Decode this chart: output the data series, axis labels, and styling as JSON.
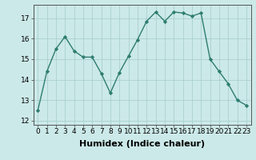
{
  "x": [
    0,
    1,
    2,
    3,
    4,
    5,
    6,
    7,
    8,
    9,
    10,
    11,
    12,
    13,
    14,
    15,
    16,
    17,
    18,
    19,
    20,
    21,
    22,
    23
  ],
  "y": [
    12.5,
    14.4,
    15.5,
    16.1,
    15.4,
    15.1,
    15.1,
    14.3,
    13.35,
    14.35,
    15.15,
    15.95,
    16.85,
    17.3,
    16.85,
    17.3,
    17.25,
    17.1,
    17.25,
    15.0,
    14.4,
    13.8,
    13.0,
    12.75
  ],
  "line_color": "#2e7d6e",
  "marker": "D",
  "marker_size": 2.2,
  "bg_color": "#cce9e9",
  "grid_color": "#aacfcf",
  "xlabel": "Humidex (Indice chaleur)",
  "xlim": [
    -0.5,
    23.5
  ],
  "ylim": [
    11.8,
    17.65
  ],
  "yticks": [
    12,
    13,
    14,
    15,
    16,
    17
  ],
  "xticks": [
    0,
    1,
    2,
    3,
    4,
    5,
    6,
    7,
    8,
    9,
    10,
    11,
    12,
    13,
    14,
    15,
    16,
    17,
    18,
    19,
    20,
    21,
    22,
    23
  ],
  "tick_fontsize": 6.5,
  "xlabel_fontsize": 8,
  "line_width": 1.0
}
